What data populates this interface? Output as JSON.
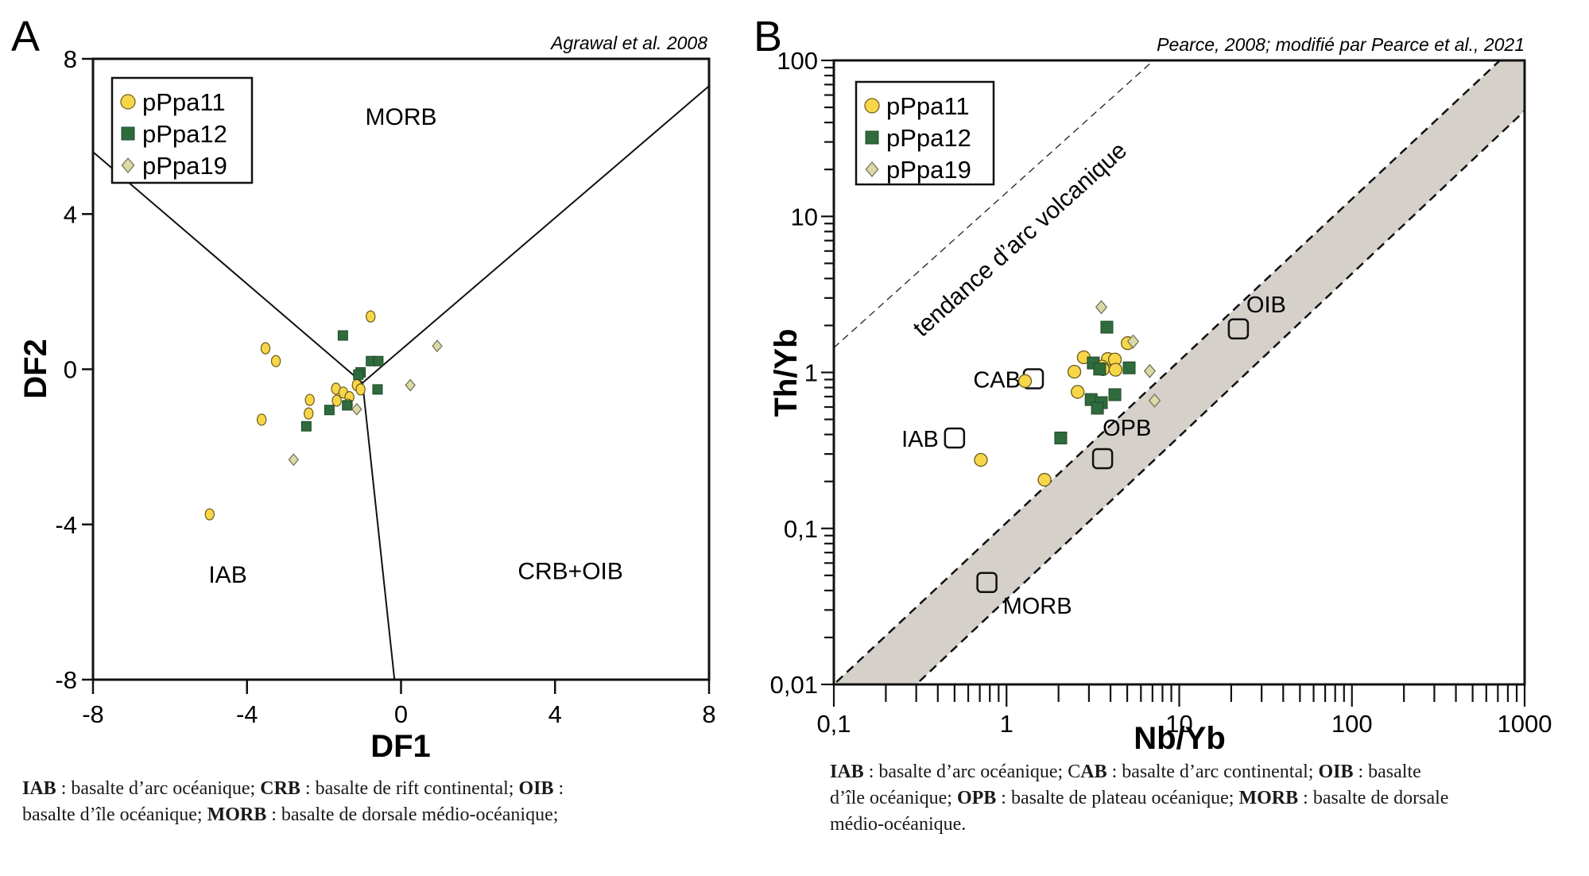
{
  "chart_data": [
    {
      "panel": "A",
      "type": "scatter",
      "title": "",
      "source": "Agrawal et al. 2008",
      "xlabel": "DF1",
      "ylabel": "DF2",
      "xlim": [
        -8,
        8
      ],
      "ylim": [
        -8,
        8
      ],
      "xticks": [
        -8,
        -4,
        0,
        4,
        8
      ],
      "yticks": [
        -8,
        -4,
        0,
        4,
        8
      ],
      "grid": false,
      "legend_position": "top-left",
      "fields": [
        {
          "label": "MORB",
          "x": 0,
          "y": 6.5
        },
        {
          "label": "IAB",
          "x": -4.5,
          "y": -5.3
        },
        {
          "label": "CRB+OIB",
          "x": 4.4,
          "y": -5.2
        }
      ],
      "boundaries": [
        [
          [
            -8,
            5.6
          ],
          [
            -1.0,
            -0.35
          ]
        ],
        [
          [
            -1.0,
            -0.35
          ],
          [
            8,
            7.3
          ]
        ],
        [
          [
            -1.0,
            -0.35
          ],
          [
            -0.17,
            -8
          ]
        ]
      ],
      "series": [
        {
          "name": "pPpa11",
          "marker": "circle",
          "color": "#f7d64a",
          "points": [
            [
              -0.79,
              1.36
            ],
            [
              -3.52,
              0.54
            ],
            [
              -3.25,
              0.21
            ],
            [
              -1.69,
              -0.5
            ],
            [
              -1.5,
              -0.6
            ],
            [
              -1.34,
              -0.72
            ],
            [
              -1.67,
              -0.81
            ],
            [
              -1.38,
              -0.91
            ],
            [
              -1.15,
              -0.41
            ],
            [
              -1.05,
              -0.52
            ],
            [
              -2.37,
              -0.79
            ],
            [
              -2.4,
              -1.14
            ],
            [
              -3.62,
              -1.3
            ],
            [
              -4.97,
              -3.74
            ]
          ]
        },
        {
          "name": "pPpa12",
          "marker": "square",
          "color": "#2f6b3c",
          "points": [
            [
              -1.51,
              0.87
            ],
            [
              -0.78,
              0.21
            ],
            [
              -0.59,
              0.21
            ],
            [
              -1.05,
              -0.08
            ],
            [
              -1.11,
              -0.14
            ],
            [
              -0.61,
              -0.52
            ],
            [
              -1.86,
              -1.05
            ],
            [
              -1.4,
              -0.93
            ],
            [
              -2.46,
              -1.47
            ]
          ]
        },
        {
          "name": "pPpa19",
          "marker": "diamond",
          "color": "#dcd9a8",
          "points": [
            [
              0.94,
              0.6
            ],
            [
              0.24,
              -0.41
            ],
            [
              -1.15,
              -1.03
            ],
            [
              -2.79,
              -2.33
            ]
          ]
        }
      ]
    },
    {
      "panel": "B",
      "type": "scatter",
      "title": "",
      "source": "Pearce, 2008; modifié par Pearce et al., 2021",
      "xlabel": "Nb/Yb",
      "ylabel": "Th/Yb",
      "xscale": "log",
      "yscale": "log",
      "xlim": [
        0.1,
        1000
      ],
      "ylim": [
        0.01,
        100
      ],
      "xtick_labels": [
        "0,1",
        "1",
        "10",
        "100",
        "1000"
      ],
      "ytick_labels": [
        "0,01",
        "0,1",
        "1",
        "10",
        "100"
      ],
      "grid": false,
      "legend_position": "top-left",
      "mantle_array": {
        "upper": [
          [
            0.1,
            0.01
          ],
          [
            719,
            100
          ]
        ],
        "lower": [
          [
            0.3,
            0.01
          ],
          [
            1000,
            47.5
          ]
        ],
        "fill": "#d6d0ca"
      },
      "arc_trend": {
        "label": "tendance d’arc volcanique",
        "line": [
          [
            0.1,
            1.44
          ],
          [
            7.1,
            100
          ]
        ]
      },
      "references": [
        {
          "label": "CAB",
          "x": 1.43,
          "y": 0.91
        },
        {
          "label": "IAB",
          "x": 0.5,
          "y": 0.38
        },
        {
          "label": "OPB",
          "x": 3.6,
          "y": 0.28
        },
        {
          "label": "OIB",
          "x": 22,
          "y": 1.9
        },
        {
          "label": "MORB",
          "x": 0.77,
          "y": 0.045
        }
      ],
      "series": [
        {
          "name": "pPpa11",
          "marker": "circle",
          "color": "#f7d64a",
          "points": [
            [
              1.28,
              0.88
            ],
            [
              2.8,
              1.25
            ],
            [
              2.47,
              1.01
            ],
            [
              2.58,
              0.75
            ],
            [
              3.86,
              1.22
            ],
            [
              4.24,
              1.21
            ],
            [
              3.57,
              1.09
            ],
            [
              3.61,
              1.05
            ],
            [
              4.28,
              1.04
            ],
            [
              5.03,
              1.54
            ],
            [
              0.71,
              0.275
            ],
            [
              1.66,
              0.205
            ]
          ]
        },
        {
          "name": "pPpa12",
          "marker": "square",
          "color": "#2f6b3c",
          "points": [
            [
              3.81,
              1.95
            ],
            [
              3.18,
              1.15
            ],
            [
              3.46,
              1.05
            ],
            [
              5.13,
              1.07
            ],
            [
              4.24,
              0.72
            ],
            [
              3.09,
              0.67
            ],
            [
              3.54,
              0.64
            ],
            [
              3.36,
              0.59
            ],
            [
              2.06,
              0.38
            ]
          ]
        },
        {
          "name": "pPpa19",
          "marker": "diamond",
          "color": "#dcd9a8",
          "points": [
            [
              3.54,
              2.62
            ],
            [
              5.41,
              1.58
            ],
            [
              6.75,
              1.02
            ],
            [
              7.2,
              0.66
            ]
          ]
        }
      ]
    }
  ],
  "panels": {
    "a_label": "A",
    "b_label": "B"
  },
  "captions": {
    "a": [
      {
        "b": "IAB",
        "t": " : basalte d’arc océanique; "
      },
      {
        "b": "CRB",
        "t": " : basalte de rift continental; "
      },
      {
        "b": "OIB",
        "t": " :\nbasalte d’île océanique; "
      },
      {
        "b": "MORB",
        "t": " : basalte de dorsale médio-océanique;"
      }
    ],
    "b": [
      {
        "b": "IAB",
        "t": " : basalte d’arc océanique; C"
      },
      {
        "b": "AB",
        "t": " : basalte d’arc continental; "
      },
      {
        "b": "OIB",
        "t": " : basalte\nd’île océanique; "
      },
      {
        "b": "OPB",
        "t": " : basalte de plateau océanique; "
      },
      {
        "b": "MORB",
        "t": " : basalte de dorsale\nmédio-océanique."
      }
    ]
  }
}
